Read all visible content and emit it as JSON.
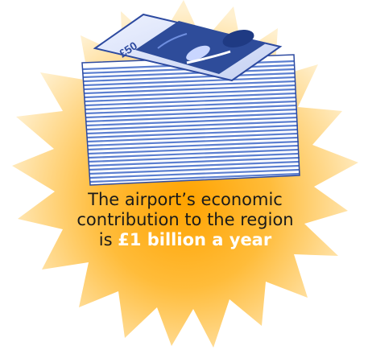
{
  "graphic": {
    "badge_icon": "starburst-badge",
    "stack_icon": "banknote-stack-icon",
    "note_value": "£50",
    "colors": {
      "burst_center": "#ffb000",
      "burst_edge": "#ffe6a8",
      "note_blue": "#2d4aa0",
      "note_light": "#dfe6ff",
      "stack_stripe": "#5478c8"
    }
  },
  "caption": {
    "line1": "The airport’s economic",
    "line2": "contribution to the region",
    "line3_prefix": "is ",
    "line3_highlight": "£1 billion a year"
  }
}
